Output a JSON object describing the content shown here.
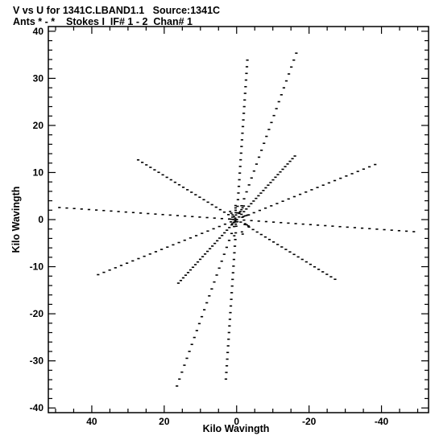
{
  "header": {
    "line1": "V vs U for 1341C.LBAND1.1   Source:1341C",
    "line2": "Ants * - *    Stokes I  IF# 1 - 2  Chan# 1"
  },
  "chart_data": {
    "type": "scatter",
    "xlabel": "Kilo Wavingth",
    "ylabel": "Kilo Wavingth",
    "xlim": [
      52,
      -53
    ],
    "ylim": [
      -41,
      41
    ],
    "xticks": [
      40,
      20,
      0,
      -20,
      -40
    ],
    "xtick_labels": [
      "40",
      "20",
      "0",
      "-20",
      "-40"
    ],
    "yticks": [
      40,
      30,
      20,
      10,
      0,
      -10,
      -20,
      -30,
      -40
    ],
    "ytick_labels": [
      "40",
      "30",
      "20",
      "10",
      "0",
      "-10",
      "-20",
      "-30",
      "-40"
    ],
    "grid": false,
    "marker_color": "#000000",
    "uv_arms": [
      {
        "angle_deg": 95,
        "max_radius": 34
      },
      {
        "angle_deg": 115,
        "max_radius": 39
      },
      {
        "angle_deg": 140,
        "max_radius": 21
      },
      {
        "angle_deg": 163,
        "max_radius": 40
      },
      {
        "angle_deg": 183,
        "max_radius": 49
      },
      {
        "angle_deg": 205,
        "max_radius": 30
      },
      {
        "angle_deg": 275,
        "max_radius": 34
      },
      {
        "angle_deg": 295,
        "max_radius": 39
      },
      {
        "angle_deg": 320,
        "max_radius": 21
      },
      {
        "angle_deg": 343,
        "max_radius": 40
      },
      {
        "angle_deg": 3,
        "max_radius": 49
      },
      {
        "angle_deg": 25,
        "max_radius": 30
      }
    ],
    "samples_per_arm": 24
  }
}
